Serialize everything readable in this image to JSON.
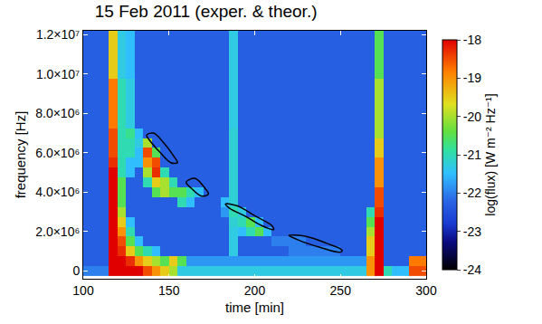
{
  "chart_data": {
    "type": "heatmap",
    "title": "15 Feb 2011 (exper. & theor.)",
    "x_label": "time [min]",
    "y_label": "frequency [Hz]",
    "colorbar_title": "log(flux) [W m⁻² Hz⁻¹]",
    "xlim": [
      100,
      300
    ],
    "xticks": [
      100,
      150,
      200,
      250,
      300
    ],
    "ylim": [
      -400000,
      12200000
    ],
    "yticks": [
      0,
      {
        "value": 2000000,
        "label": "2.0×10⁶"
      },
      {
        "value": 4000000,
        "label": "4.0×10⁶"
      },
      {
        "value": 6000000,
        "label": "6.0×10⁶"
      },
      {
        "value": 8000000,
        "label": "8.0×10⁶"
      },
      {
        "value": 10000000,
        "label": "1.0×10⁷"
      },
      {
        "value": 12000000,
        "label": "1.2×10⁷"
      }
    ],
    "zlim": [
      -24,
      -18
    ],
    "zticks": [
      -18,
      -19,
      -20,
      -21,
      -22,
      -23,
      -24
    ],
    "x": [
      102.5,
      107.5,
      112.5,
      117.5,
      122.5,
      127.5,
      132.5,
      137.5,
      142.5,
      147.5,
      152.5,
      157.5,
      162.5,
      167.5,
      172.5,
      177.5,
      182.5,
      187.5,
      192.5,
      197.5,
      202.5,
      207.5,
      212.5,
      217.5,
      222.5,
      227.5,
      232.5,
      237.5,
      242.5,
      247.5,
      252.5,
      257.5,
      262.5,
      267.5,
      272.5,
      277.5,
      282.5,
      287.5,
      292.5,
      297.5
    ],
    "y": [
      0,
      500000,
      1000000,
      1500000,
      2000000,
      2500000,
      3000000,
      3500000,
      4000000,
      4500000,
      5000000,
      5500000,
      6000000,
      6500000,
      7000000,
      7500000,
      8000000,
      8500000,
      9000000,
      9500000,
      10000000,
      10500000,
      11000000,
      11500000,
      12000000
    ],
    "z": [
      [
        -22,
        -22,
        -22,
        -18,
        -18,
        -18,
        -18,
        -18.5,
        -19,
        -19.5,
        -20,
        -21.3,
        -21.3,
        -21.3,
        -21.3,
        -21.3,
        -21.3,
        -21.3,
        -21.3,
        -21.3,
        -21.3,
        -21.3,
        -21.3,
        -21.3,
        -21.3,
        -21.3,
        -21.3,
        -21.3,
        -21.3,
        -21.3,
        -21.3,
        -21.3,
        -21.3,
        -19,
        -18,
        -21,
        -21.5,
        -21.5,
        -18.5,
        -18.5
      ],
      [
        -22.3,
        -22.3,
        -22.3,
        -18,
        -18,
        -18.3,
        -19,
        -19.5,
        -20,
        -20.5,
        -19.5,
        -20.5,
        -21.8,
        -21.8,
        -21.8,
        -21.8,
        -21.8,
        -21.8,
        -21.8,
        -21.8,
        -21.8,
        -21.8,
        -21.8,
        -21.8,
        -21.8,
        -21.8,
        -21.8,
        -21.8,
        -21.8,
        -21.8,
        -21.8,
        -21.8,
        -21.8,
        -19,
        -18,
        -22.3,
        -22.3,
        -22.3,
        -18.8,
        -18.8
      ],
      [
        -22.3,
        -22.3,
        -22.3,
        -18,
        -18.3,
        -19.5,
        -20.5,
        -21,
        -21.5,
        -22.3,
        -22.3,
        -22.3,
        -22.3,
        -22.3,
        -22.3,
        -22.3,
        -22.3,
        -21.3,
        -22.3,
        -22.3,
        -22.3,
        -22.3,
        -22.3,
        -22.3,
        -22,
        -22,
        -22,
        -22,
        -22,
        -22,
        -22.3,
        -22.3,
        -22.3,
        -19.5,
        -18,
        -22.3,
        -22.3,
        -22.3,
        -22.3,
        -22.3
      ],
      [
        -22.3,
        -22.3,
        -22.3,
        -18,
        -18.5,
        -20.5,
        -21.5,
        -22.3,
        -22.3,
        -22.3,
        -22.3,
        -22.3,
        -22.3,
        -22.3,
        -22.3,
        -22.3,
        -22.3,
        -21.3,
        -22.3,
        -22.3,
        -22.3,
        -22.3,
        -22,
        -22,
        -22,
        -22,
        -22.3,
        -22.3,
        -22.3,
        -22.3,
        -22.3,
        -22.3,
        -22.3,
        -19.5,
        -18,
        -22.3,
        -22.3,
        -22.3,
        -22.3,
        -22.3
      ],
      [
        -22.3,
        -22.3,
        -22.3,
        -18,
        -19,
        -21,
        -22.3,
        -22.3,
        -22.3,
        -22.3,
        -22.3,
        -22.3,
        -22.3,
        -22.3,
        -22.3,
        -22.3,
        -22.3,
        -21.3,
        -21.5,
        -21,
        -20.5,
        -21.5,
        -22.3,
        -22.3,
        -22.3,
        -22.3,
        -22.3,
        -22.3,
        -22.3,
        -22.3,
        -22.3,
        -22.3,
        -22.3,
        -20,
        -18,
        -22.3,
        -22.3,
        -22.3,
        -22.3,
        -22.3
      ],
      [
        -22.3,
        -22.3,
        -22.3,
        -18,
        -19.5,
        -21.5,
        -22.3,
        -22.3,
        -22.3,
        -22.3,
        -22.3,
        -22.3,
        -22.3,
        -22.3,
        -22.3,
        -22.3,
        -22.3,
        -21.2,
        -21,
        -20.5,
        -21.5,
        -22.3,
        -22.3,
        -22.3,
        -22.3,
        -22.3,
        -22.3,
        -22.3,
        -22.3,
        -22.3,
        -22.3,
        -22.3,
        -22.3,
        -20.5,
        -18,
        -22.3,
        -22.3,
        -22.3,
        -22.3,
        -22.3
      ],
      [
        -22.3,
        -22.3,
        -22.3,
        -18,
        -20,
        -22.3,
        -22.3,
        -22.3,
        -22.3,
        -22.3,
        -22.3,
        -22.3,
        -22.3,
        -22.3,
        -22.3,
        -22.3,
        -21.8,
        -21,
        -21.3,
        -22.3,
        -22.3,
        -22.3,
        -22.3,
        -22.3,
        -22.3,
        -22.3,
        -22.3,
        -22.3,
        -22.3,
        -22.3,
        -22.3,
        -22.3,
        -22.3,
        -21,
        -18.3,
        -22.3,
        -22.3,
        -22.3,
        -22.3,
        -22.3
      ],
      [
        -22.3,
        -22.3,
        -22.3,
        -18,
        -20.5,
        -22.3,
        -22.3,
        -22.3,
        -22.3,
        -22.3,
        -22.3,
        -21,
        -21.5,
        -22.3,
        -22.3,
        -22.3,
        -21.5,
        -21.2,
        -22.3,
        -22.3,
        -22.3,
        -22.3,
        -22.3,
        -22.3,
        -22.3,
        -22.3,
        -22.3,
        -22.3,
        -22.3,
        -22.3,
        -22.3,
        -22.3,
        -22.3,
        -22.3,
        -18.5,
        -22.3,
        -22.3,
        -22.3,
        -22.3,
        -22.3
      ],
      [
        -22.3,
        -22.3,
        -22.3,
        -18,
        -20.5,
        -22.3,
        -22.3,
        -22.3,
        -20.5,
        -20,
        -20.5,
        -20.5,
        -21,
        -21.5,
        -22.3,
        -22.3,
        -22.3,
        -21.2,
        -22.3,
        -22.3,
        -22.3,
        -22.3,
        -22.3,
        -22.3,
        -22.3,
        -22.3,
        -22.3,
        -22.3,
        -22.3,
        -22.3,
        -22.3,
        -22.3,
        -22.3,
        -22.3,
        -18.5,
        -22.3,
        -22.3,
        -22.3,
        -22.3,
        -22.3
      ],
      [
        -22.3,
        -22.3,
        -22.3,
        -18,
        -20.5,
        -22.3,
        -22.3,
        -21,
        -19.5,
        -20,
        -21,
        -22.3,
        -22.3,
        -22.3,
        -22.3,
        -22.3,
        -22.3,
        -21.2,
        -22.3,
        -22.3,
        -22.3,
        -22.3,
        -22.3,
        -22.3,
        -22.3,
        -22.3,
        -22.3,
        -22.3,
        -22.3,
        -22.3,
        -22.3,
        -22.3,
        -22.3,
        -22.3,
        -19,
        -22.3,
        -22.3,
        -22.3,
        -22.3,
        -22.3
      ],
      [
        -22.3,
        -22.3,
        -22.3,
        -18,
        -21,
        -21.5,
        -22.3,
        -20,
        -18.3,
        -21,
        -22.3,
        -22.3,
        -22.3,
        -22.3,
        -22.3,
        -22.3,
        -22.3,
        -21.2,
        -22.3,
        -22.3,
        -22.3,
        -22.3,
        -22.3,
        -22.3,
        -22.3,
        -22.3,
        -22.3,
        -22.3,
        -22.3,
        -22.3,
        -22.3,
        -22.3,
        -22.3,
        -22.3,
        -19,
        -22.3,
        -22.3,
        -22.3,
        -22.3,
        -22.3
      ],
      [
        -22.3,
        -22.3,
        -22.3,
        -18.3,
        -21,
        -21.5,
        -21.5,
        -19,
        -18.5,
        -22.3,
        -22.3,
        -22.3,
        -22.3,
        -22.3,
        -22.3,
        -22.3,
        -22.3,
        -21.2,
        -22.3,
        -22.3,
        -22.3,
        -22.3,
        -22.3,
        -22.3,
        -22.3,
        -22.3,
        -22.3,
        -22.3,
        -22.3,
        -22.3,
        -22.3,
        -22.3,
        -22.3,
        -22.3,
        -19,
        -22.3,
        -22.3,
        -22.3,
        -22.3,
        -22.3
      ],
      [
        -22.3,
        -22.3,
        -22.3,
        -18.5,
        -21,
        -21,
        -21.5,
        -18.5,
        -20.5,
        -22.3,
        -22.3,
        -22.3,
        -22.3,
        -22.3,
        -22.3,
        -22.3,
        -22.3,
        -21.2,
        -22.3,
        -22.3,
        -22.3,
        -22.3,
        -22.3,
        -22.3,
        -22.3,
        -22.3,
        -22.3,
        -22.3,
        -22.3,
        -22.3,
        -22.3,
        -22.3,
        -22.3,
        -22.3,
        -19.5,
        -22.3,
        -22.3,
        -22.3,
        -22.3,
        -22.3
      ],
      [
        -22.3,
        -22.3,
        -22.3,
        -18.5,
        -21,
        -21,
        -21.3,
        -20,
        -22.3,
        -22.3,
        -22.3,
        -22.3,
        -22.3,
        -22.3,
        -22.3,
        -22.3,
        -22.3,
        -21.2,
        -22.3,
        -22.3,
        -22.3,
        -22.3,
        -22.3,
        -22.3,
        -22.3,
        -22.3,
        -22.3,
        -22.3,
        -22.3,
        -22.3,
        -22.3,
        -22.3,
        -22.3,
        -22.3,
        -19.5,
        -22.3,
        -22.3,
        -22.3,
        -22.3,
        -22.3
      ],
      [
        -22.3,
        -22.3,
        -22.3,
        -18.5,
        -21,
        -20.8,
        -21.5,
        -22.3,
        -22.3,
        -22.3,
        -22.3,
        -22.3,
        -22.3,
        -22.3,
        -22.3,
        -22.3,
        -22.3,
        -21.2,
        -22.3,
        -22.3,
        -22.3,
        -22.3,
        -22.3,
        -22.3,
        -22.3,
        -22.3,
        -22.3,
        -22.3,
        -22.3,
        -22.3,
        -22.3,
        -22.3,
        -22.3,
        -22.3,
        -20,
        -22.3,
        -22.3,
        -22.3,
        -22.3,
        -22.3
      ],
      [
        -22.3,
        -22.3,
        -22.3,
        -18.8,
        -21,
        -21.3,
        -22.3,
        -22.3,
        -22.3,
        -22.3,
        -22.3,
        -22.3,
        -22.3,
        -22.3,
        -22.3,
        -22.3,
        -22.3,
        -21.3,
        -22.3,
        -22.3,
        -22.3,
        -22.3,
        -22.3,
        -22.3,
        -22.3,
        -22.3,
        -22.3,
        -22.3,
        -22.3,
        -22.3,
        -22.3,
        -22.3,
        -22.3,
        -22.3,
        -20,
        -22.3,
        -22.3,
        -22.3,
        -22.3,
        -22.3
      ],
      [
        -22.3,
        -22.3,
        -22.3,
        -18.8,
        -21,
        -21.3,
        -22.3,
        -22.3,
        -22.3,
        -22.3,
        -22.3,
        -22.3,
        -22.3,
        -22.3,
        -22.3,
        -22.3,
        -22.3,
        -21.3,
        -22.3,
        -22.3,
        -22.3,
        -22.3,
        -22.3,
        -22.3,
        -22.3,
        -22.3,
        -22.3,
        -22.3,
        -22.3,
        -22.3,
        -22.3,
        -22.3,
        -22.3,
        -22.3,
        -20,
        -22.3,
        -22.3,
        -22.3,
        -22.3,
        -22.3
      ],
      [
        -22.3,
        -22.3,
        -22.3,
        -18.8,
        -21,
        -21.3,
        -22.3,
        -22.3,
        -22.3,
        -22.3,
        -22.3,
        -22.3,
        -22.3,
        -22.3,
        -22.3,
        -22.3,
        -22.3,
        -21.3,
        -22.3,
        -22.3,
        -22.3,
        -22.3,
        -22.3,
        -22.3,
        -22.3,
        -22.3,
        -22.3,
        -22.3,
        -22.3,
        -22.3,
        -22.3,
        -22.3,
        -22.3,
        -22.3,
        -20,
        -22.3,
        -22.3,
        -22.3,
        -22.3,
        -22.3
      ],
      [
        -22.3,
        -22.3,
        -22.3,
        -18.8,
        -21,
        -21.3,
        -22.3,
        -22.3,
        -22.3,
        -22.3,
        -22.3,
        -22.3,
        -22.3,
        -22.3,
        -22.3,
        -22.3,
        -22.3,
        -21.3,
        -22.3,
        -22.3,
        -22.3,
        -22.3,
        -22.3,
        -22.3,
        -22.3,
        -22.3,
        -22.3,
        -22.3,
        -22.3,
        -22.3,
        -22.3,
        -22.3,
        -22.3,
        -22.3,
        -20,
        -22.3,
        -22.3,
        -22.3,
        -22.3,
        -22.3
      ],
      [
        -22.3,
        -22.3,
        -22.3,
        -18.8,
        -21,
        -21.3,
        -22.3,
        -22.3,
        -22.3,
        -22.3,
        -22.3,
        -22.3,
        -22.3,
        -22.3,
        -22.3,
        -22.3,
        -22.3,
        -21.3,
        -22.3,
        -22.3,
        -22.3,
        -22.3,
        -22.3,
        -22.3,
        -22.3,
        -22.3,
        -22.3,
        -22.3,
        -22.3,
        -22.3,
        -22.3,
        -22.3,
        -22.3,
        -22.3,
        -20,
        -22.3,
        -22.3,
        -22.3,
        -22.3,
        -22.3
      ],
      [
        -22.3,
        -22.3,
        -22.3,
        -19.5,
        -21.3,
        -21.5,
        -22.3,
        -22.3,
        -22.3,
        -22.3,
        -22.3,
        -22.3,
        -22.3,
        -22.3,
        -22.3,
        -22.3,
        -22.3,
        -21.3,
        -22.3,
        -22.3,
        -22.3,
        -22.3,
        -22.3,
        -22.3,
        -22.3,
        -22.3,
        -22.3,
        -22.3,
        -22.3,
        -22.3,
        -22.3,
        -22.3,
        -22.3,
        -22.3,
        -20.5,
        -22.3,
        -22.3,
        -22.3,
        -22.3,
        -22.3
      ],
      [
        -22.3,
        -22.3,
        -22.3,
        -19.5,
        -21.3,
        -21.5,
        -22.3,
        -22.3,
        -22.3,
        -22.3,
        -22.3,
        -22.3,
        -22.3,
        -22.3,
        -22.3,
        -22.3,
        -22.3,
        -21.3,
        -22.3,
        -22.3,
        -22.3,
        -22.3,
        -22.3,
        -22.3,
        -22.3,
        -22.3,
        -22.3,
        -22.3,
        -22.3,
        -22.3,
        -22.3,
        -22.3,
        -22.3,
        -22.3,
        -20.5,
        -22.3,
        -22.3,
        -22.3,
        -22.3,
        -22.3
      ],
      [
        -22.3,
        -22.3,
        -22.3,
        -19.5,
        -21.3,
        -21.5,
        -22.3,
        -22.3,
        -22.3,
        -22.3,
        -22.3,
        -22.3,
        -22.3,
        -22.3,
        -22.3,
        -22.3,
        -22.3,
        -21.3,
        -22.3,
        -22.3,
        -22.3,
        -22.3,
        -22.3,
        -22.3,
        -22.3,
        -22.3,
        -22.3,
        -22.3,
        -22.3,
        -22.3,
        -22.3,
        -22.3,
        -22.3,
        -22.3,
        -20.5,
        -22.3,
        -22.3,
        -22.3,
        -22.3,
        -22.3
      ],
      [
        -22.3,
        -22.3,
        -22.3,
        -19.5,
        -21.3,
        -21.5,
        -22.3,
        -22.3,
        -22.3,
        -22.3,
        -22.3,
        -22.3,
        -22.3,
        -22.3,
        -22.3,
        -22.3,
        -22.3,
        -21.3,
        -22.3,
        -22.3,
        -22.3,
        -22.3,
        -22.3,
        -22.3,
        -22.3,
        -22.3,
        -22.3,
        -22.3,
        -22.3,
        -22.3,
        -22.3,
        -22.3,
        -22.3,
        -22.3,
        -20.5,
        -22.3,
        -22.3,
        -22.3,
        -22.3,
        -22.3
      ],
      [
        -22.3,
        -22.3,
        -22.3,
        -19.5,
        -21.3,
        -21.5,
        -22.3,
        -22.3,
        -22.3,
        -22.3,
        -22.3,
        -22.3,
        -22.3,
        -22.3,
        -22.3,
        -22.3,
        -22.3,
        -21.3,
        -22.3,
        -22.3,
        -22.3,
        -22.3,
        -22.3,
        -22.3,
        -22.3,
        -22.3,
        -22.3,
        -22.3,
        -22.3,
        -22.3,
        -22.3,
        -22.3,
        -22.3,
        -22.3,
        -20.5,
        -22.3,
        -22.3,
        -22.3,
        -22.3,
        -22.3
      ]
    ],
    "series": [
      {
        "type": "line",
        "color": "#000000",
        "x": [
          137,
          141,
          147,
          153,
          155,
          151,
          145,
          139,
          137
        ],
        "values": [
          6900000,
          7000000,
          6500000,
          5800000,
          5500000,
          5500000,
          6000000,
          6600000,
          6900000
        ]
      },
      {
        "type": "line",
        "color": "#000000",
        "x": [
          160,
          165,
          171,
          173,
          169,
          163,
          160
        ],
        "values": [
          4500000,
          4700000,
          4200000,
          3900000,
          3800000,
          4200000,
          4500000
        ]
      },
      {
        "type": "line",
        "color": "#000000",
        "x": [
          183,
          190,
          200,
          210,
          211,
          204,
          194,
          185,
          183
        ],
        "values": [
          3400000,
          3300000,
          2800000,
          2300000,
          2100000,
          2300000,
          2800000,
          3200000,
          3400000
        ]
      },
      {
        "type": "line",
        "color": "#000000",
        "x": [
          220,
          230,
          242,
          251,
          250,
          238,
          226,
          220
        ],
        "values": [
          1800000,
          1750000,
          1400000,
          1050000,
          950000,
          1200000,
          1550000,
          1800000
        ]
      }
    ]
  }
}
